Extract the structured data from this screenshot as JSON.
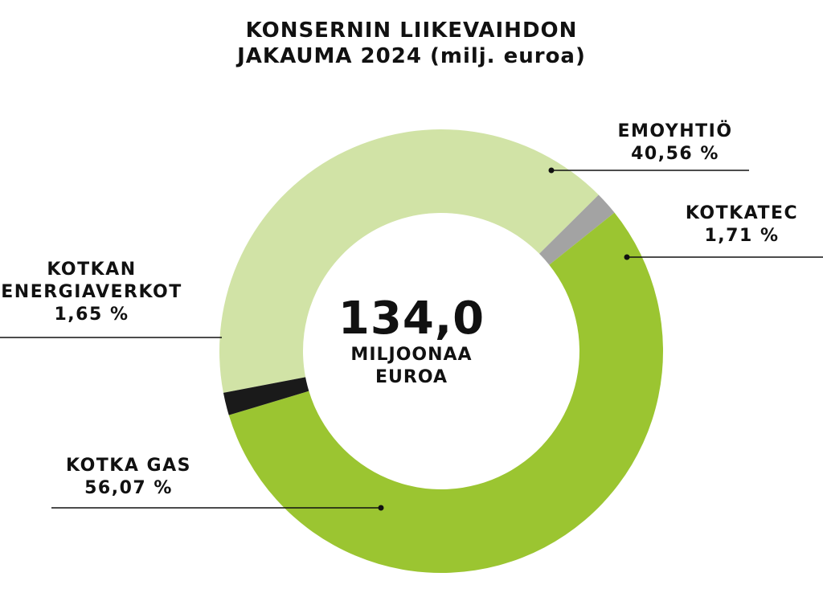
{
  "chart_data": {
    "type": "pie",
    "title_lines": [
      "KONSERNIN LIIKEVAIHDON",
      "JAKAUMA 2024 (milj. euroa)"
    ],
    "center_value": "134,0",
    "center_unit_lines": [
      "MILJOONAA",
      "EUROA"
    ],
    "slices": [
      {
        "name": "EMOYHTIÖ",
        "percent_label": "40,56 %",
        "value": 40.56,
        "color": "#d1e3a6"
      },
      {
        "name": "KOTKATEC",
        "percent_label": "1,71 %",
        "value": 1.71,
        "color": "#a3a3a3"
      },
      {
        "name": "KOTKA GAS",
        "percent_label": "56,07 %",
        "value": 56.07,
        "color": "#9bc531"
      },
      {
        "name_lines": [
          "KOTKAN",
          "ENERGIAVERKOT"
        ],
        "percent_label": "1,65 %",
        "value": 1.65,
        "color": "#1a1a1a"
      }
    ],
    "legend": "none"
  }
}
